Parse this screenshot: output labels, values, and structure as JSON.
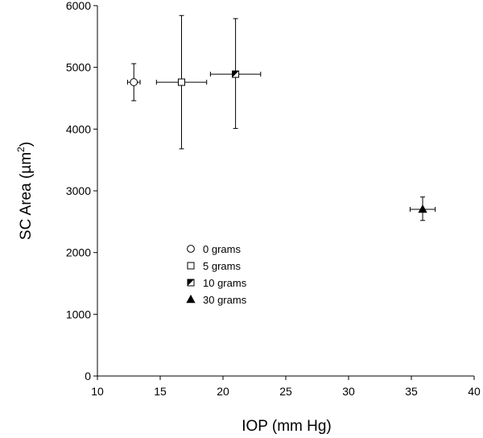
{
  "chart_data": {
    "type": "scatter",
    "xlabel": "IOP (mm Hg)",
    "ylabel": "SC Area (µm",
    "ylabel_sup": "2",
    "ylabel_close": ")",
    "xlim": [
      10,
      40
    ],
    "ylim": [
      0,
      6000
    ],
    "xticks": [
      10,
      15,
      20,
      25,
      30,
      35,
      40
    ],
    "yticks": [
      0,
      1000,
      2000,
      3000,
      4000,
      5000,
      6000
    ],
    "grid": false,
    "legend_position": "lower-left-center",
    "series": [
      {
        "name": "0 grams",
        "marker": "circle",
        "x": 12.9,
        "y": 4760,
        "x_err": [
          12.4,
          13.4
        ],
        "y_err": [
          4460,
          5060
        ]
      },
      {
        "name": "5 grams",
        "marker": "square",
        "x": 16.7,
        "y": 4760,
        "x_err": [
          14.7,
          18.7
        ],
        "y_err": [
          3680,
          5840
        ]
      },
      {
        "name": "10 grams",
        "marker": "half-filled-square",
        "x": 21.0,
        "y": 4890,
        "x_err": [
          19.0,
          23.0
        ],
        "y_err": [
          4010,
          5790
        ]
      },
      {
        "name": "30 grams",
        "marker": "filled-triangle",
        "x": 35.9,
        "y": 2700,
        "x_err": [
          34.9,
          36.9
        ],
        "y_err": [
          2520,
          2900
        ]
      }
    ]
  }
}
